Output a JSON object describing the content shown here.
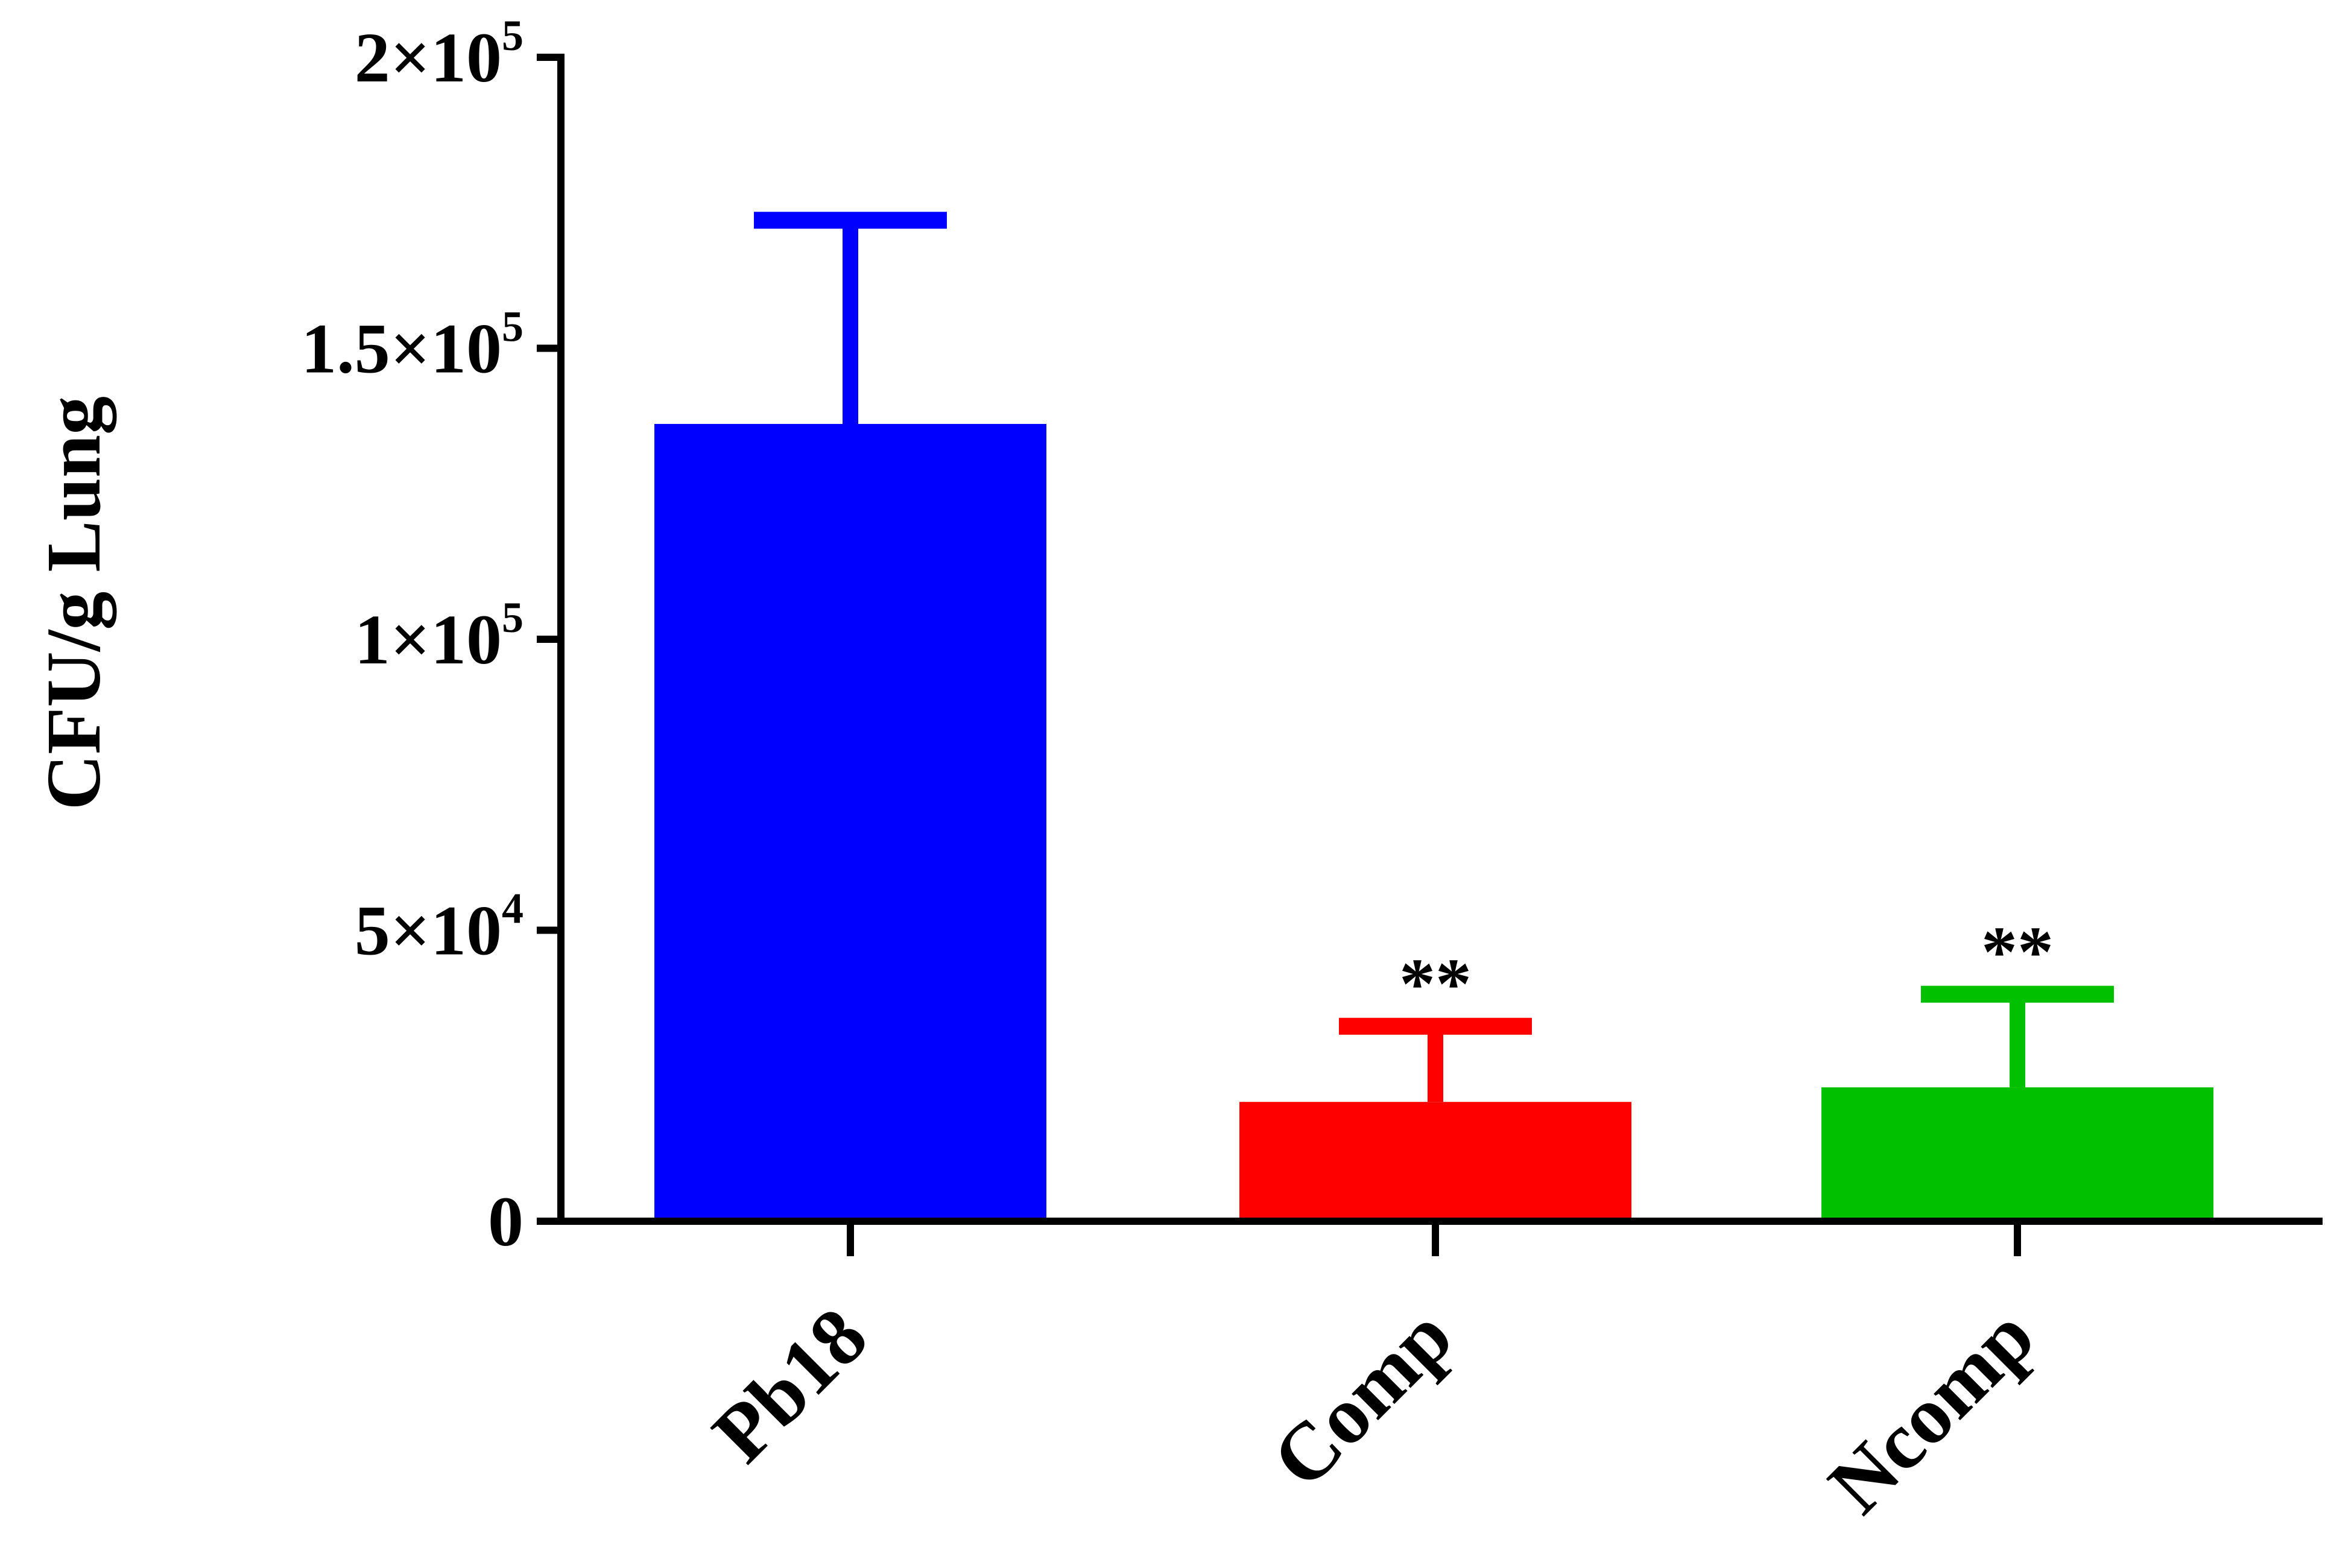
{
  "chart_data": {
    "type": "bar",
    "title": "",
    "xlabel": "",
    "ylabel": "CFU/g Lung",
    "ylim": [
      0,
      200000
    ],
    "yticks": [
      {
        "value": 0,
        "base": "0",
        "exp": ""
      },
      {
        "value": 50000,
        "base": "5×10",
        "exp": "4"
      },
      {
        "value": 100000,
        "base": "1×10",
        "exp": "5"
      },
      {
        "value": 150000,
        "base": "1.5×10",
        "exp": "5"
      },
      {
        "value": 200000,
        "base": "2×10",
        "exp": "5"
      }
    ],
    "categories": [
      "Pb18",
      "Comp",
      "Ncomp"
    ],
    "values": [
      137000,
      20500,
      23000
    ],
    "error_upper": [
      172000,
      33500,
      39000
    ],
    "significance": [
      "",
      "**",
      "**"
    ],
    "colors": [
      "#0000ff",
      "#ff0000",
      "#00c000"
    ],
    "grid": false,
    "legend": "none"
  }
}
